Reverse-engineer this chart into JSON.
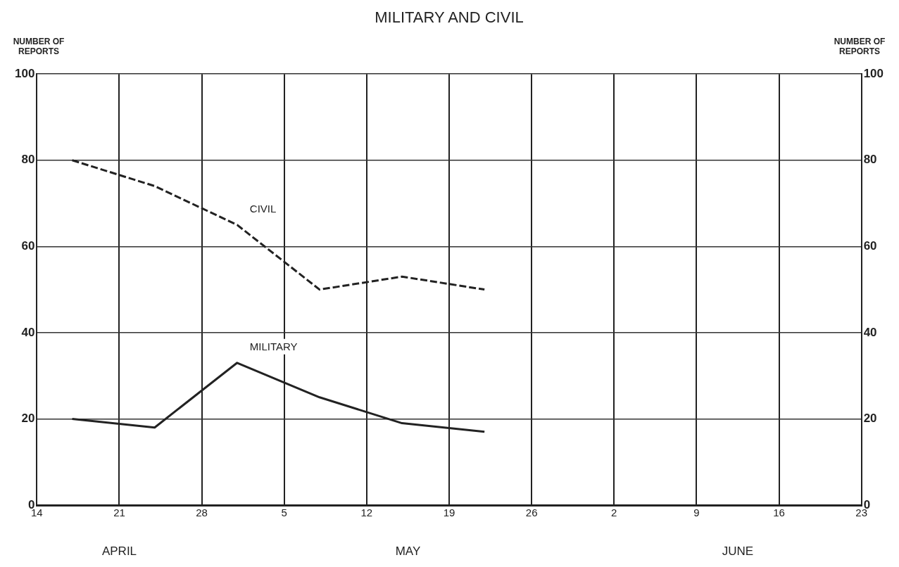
{
  "chart_data": {
    "type": "line",
    "title": "MILITARY AND CIVIL",
    "ylabel": "NUMBER OF REPORTS",
    "y2label": "NUMBER OF REPORTS",
    "annotations": [
      "APRIL",
      "MAY",
      "JUNE"
    ],
    "xlim": [
      "--04-14",
      "--06-23"
    ],
    "xticks": [
      {
        "value": "--04-14",
        "label": "14"
      },
      {
        "value": "--04-21",
        "label": "21"
      },
      {
        "value": "--04-28",
        "label": "28"
      },
      {
        "value": "--05-05",
        "label": "5"
      },
      {
        "value": "--05-12",
        "label": "12"
      },
      {
        "value": "--05-19",
        "label": "19"
      },
      {
        "value": "--05-26",
        "label": "26"
      },
      {
        "value": "--06-02",
        "label": "2"
      },
      {
        "value": "--06-09",
        "label": "9"
      },
      {
        "value": "--06-16",
        "label": "16"
      },
      {
        "value": "--06-23",
        "label": "23"
      }
    ],
    "ylim": [
      0,
      100
    ],
    "yticks": [
      0,
      20,
      40,
      60,
      80,
      100
    ],
    "y2lim": [
      0,
      100
    ],
    "y2ticks": [
      0,
      20,
      40,
      60,
      80,
      100
    ],
    "grid": true,
    "legend": false,
    "marker": "none",
    "series": [
      {
        "name": "CIVIL",
        "color": "#222222",
        "line_style": "dashed",
        "x": [
          "--04-17",
          "--04-24",
          "--05-01",
          "--05-08",
          "--05-15",
          "--05-22"
        ],
        "values": [
          80,
          74,
          65,
          50,
          53,
          50
        ]
      },
      {
        "name": "MILITARY",
        "color": "#222222",
        "line_style": "solid",
        "x": [
          "--04-17",
          "--04-24",
          "--05-01",
          "--05-08",
          "--05-15",
          "--05-22"
        ],
        "values": [
          20,
          18,
          33,
          25,
          19,
          17
        ]
      }
    ]
  }
}
